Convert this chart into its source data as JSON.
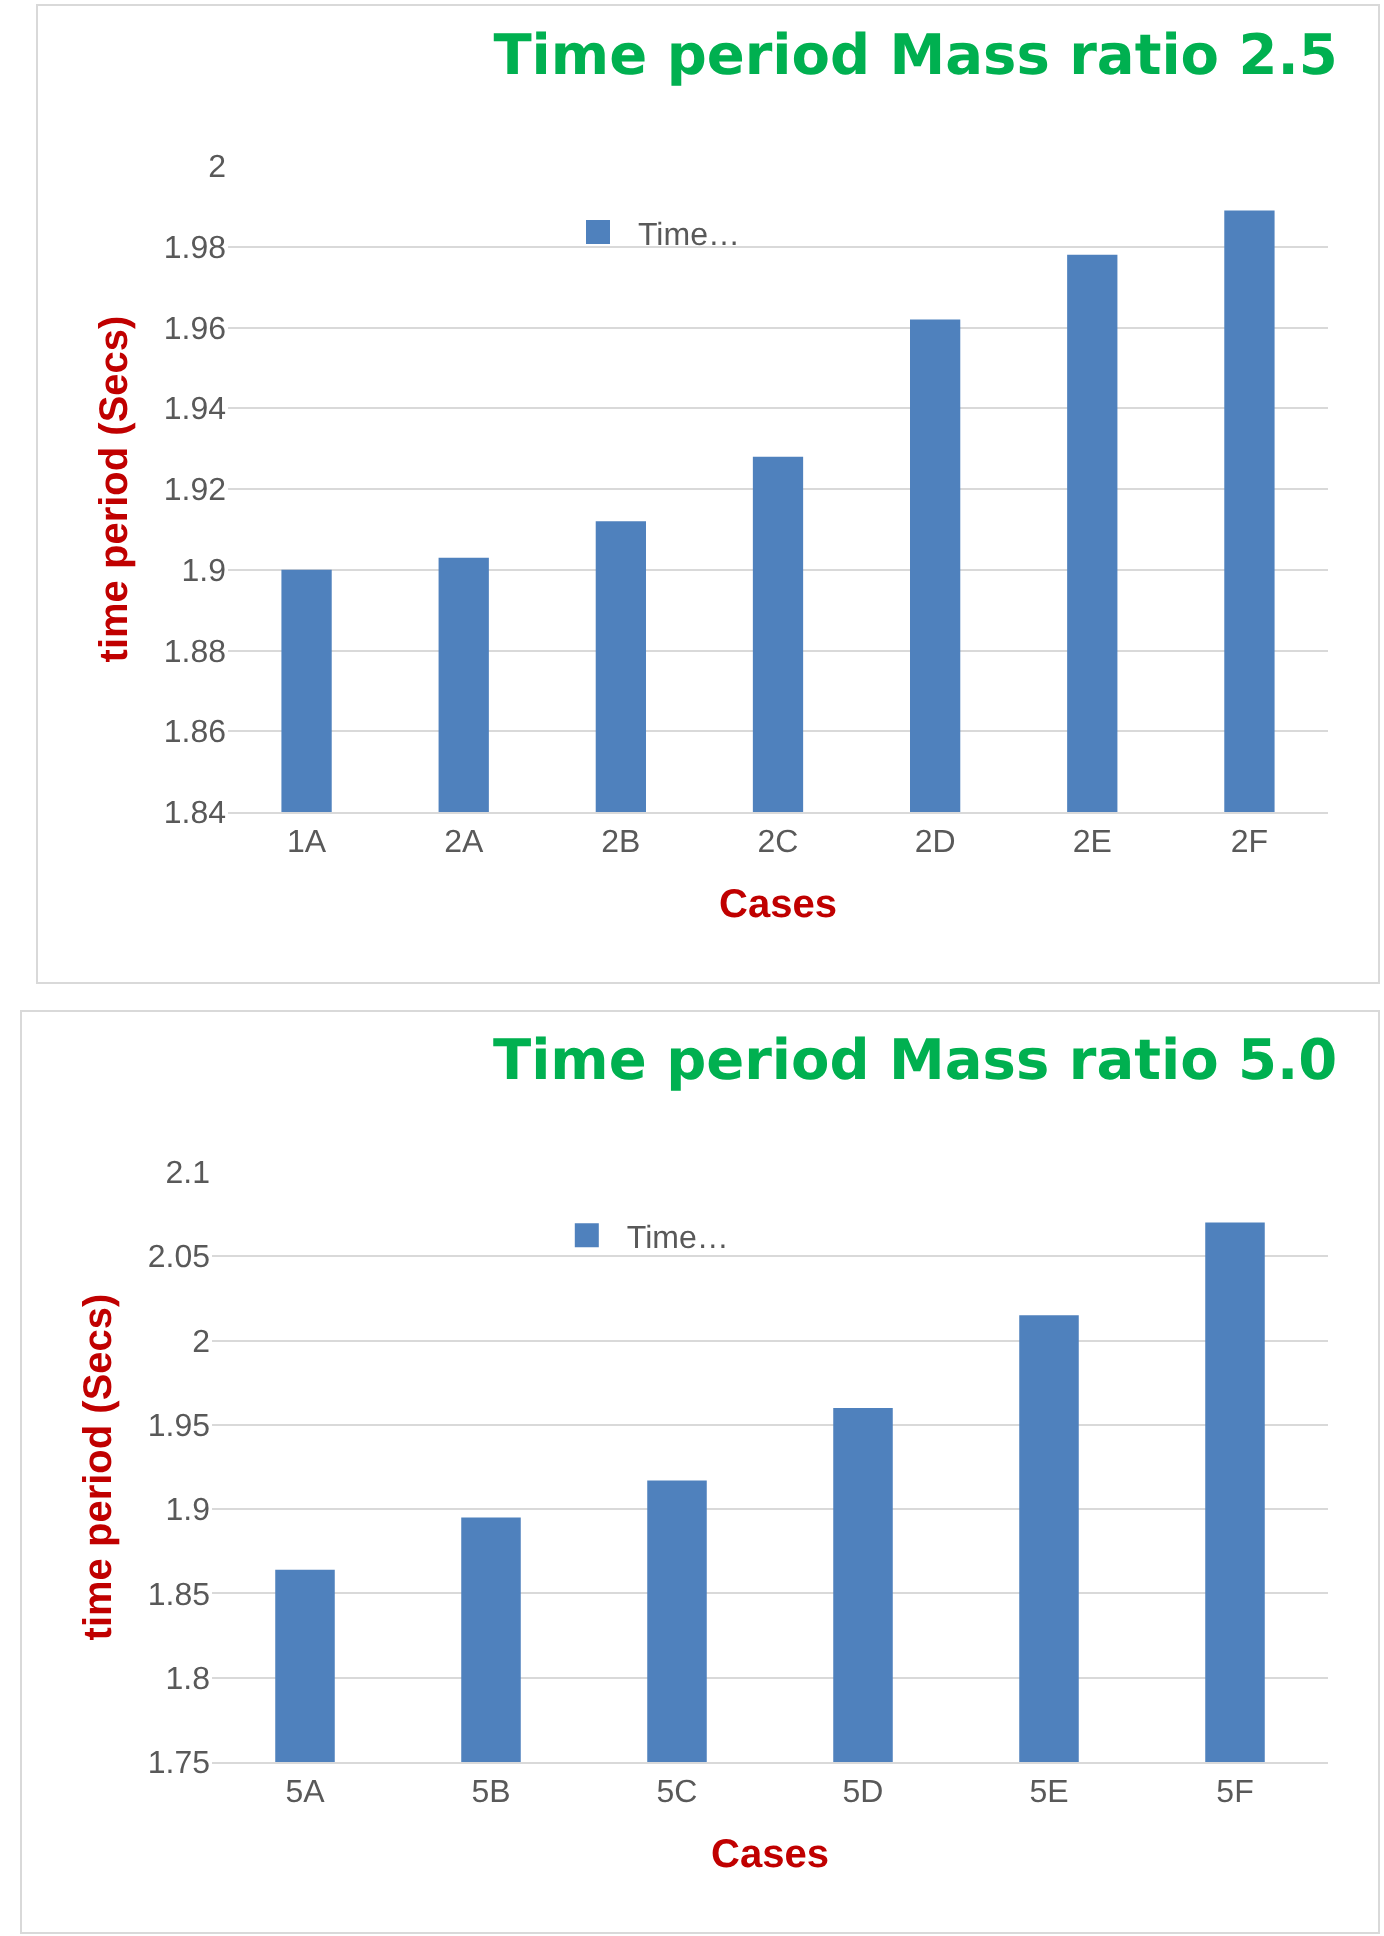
{
  "chart_data": [
    {
      "type": "bar",
      "title": "Time period Mass ratio 2.5",
      "xlabel": "Cases",
      "ylabel": "time period (Secs)",
      "categories": [
        "1A",
        "2A",
        "2B",
        "2C",
        "2D",
        "2E",
        "2F"
      ],
      "series": [
        {
          "name": "Time…",
          "color": "#4f81bd",
          "values": [
            1.9,
            1.903,
            1.912,
            1.928,
            1.962,
            1.978,
            1.989
          ]
        }
      ],
      "ylim": [
        1.84,
        2
      ],
      "yticks": [
        1.84,
        1.86,
        1.88,
        1.9,
        1.92,
        1.94,
        1.96,
        1.98,
        2
      ],
      "grid": "y",
      "legend": "top"
    },
    {
      "type": "bar",
      "title": "Time period Mass ratio 5.0",
      "xlabel": "Cases",
      "ylabel": "time period (Secs)",
      "categories": [
        "5A",
        "5B",
        "5C",
        "5D",
        "5E",
        "5F"
      ],
      "series": [
        {
          "name": "Time…",
          "color": "#4f81bd",
          "values": [
            1.864,
            1.895,
            1.917,
            1.96,
            2.015,
            2.07
          ]
        }
      ],
      "ylim": [
        1.75,
        2.1
      ],
      "yticks": [
        1.75,
        1.8,
        1.85,
        1.9,
        1.95,
        2,
        2.05,
        2.1
      ],
      "grid": "y",
      "legend": "top"
    }
  ]
}
